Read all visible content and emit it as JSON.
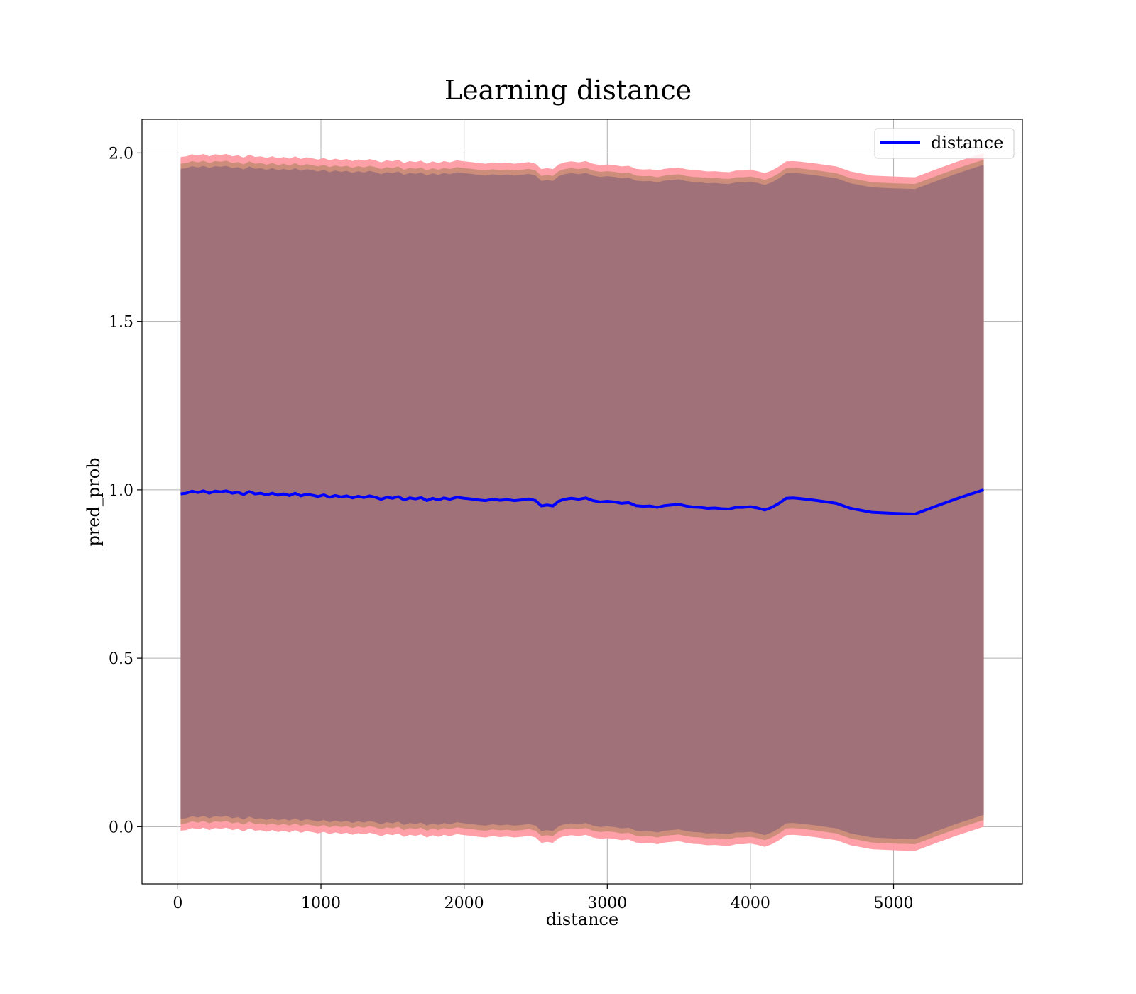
{
  "chart_data": {
    "type": "line",
    "title": "Learning distance",
    "xlabel": "distance",
    "ylabel": "pred_prob",
    "xlim": [
      -250,
      5900
    ],
    "ylim": [
      -0.17,
      2.1
    ],
    "xticks": [
      0,
      1000,
      2000,
      3000,
      4000,
      5000
    ],
    "xtick_labels": [
      "0",
      "1000",
      "2000",
      "3000",
      "4000",
      "5000"
    ],
    "yticks": [
      0.0,
      0.5,
      1.0,
      1.5,
      2.0
    ],
    "ytick_labels": [
      "0.0",
      "0.5",
      "1.0",
      "1.5",
      "2.0"
    ],
    "grid": true,
    "legend_position": "top-right",
    "colors": {
      "line": "#0000ff",
      "band_outer": "#ff9aa2",
      "band_mid": "#c98d78",
      "band_inner": "#a1717a",
      "grid": "#b0b0b0"
    },
    "series": [
      {
        "name": "distance",
        "x": [
          20,
          60,
          100,
          140,
          180,
          220,
          260,
          300,
          340,
          380,
          420,
          460,
          500,
          540,
          580,
          620,
          660,
          700,
          740,
          780,
          820,
          860,
          900,
          940,
          980,
          1020,
          1060,
          1100,
          1140,
          1180,
          1220,
          1260,
          1300,
          1340,
          1380,
          1420,
          1460,
          1500,
          1540,
          1580,
          1620,
          1660,
          1700,
          1740,
          1780,
          1820,
          1860,
          1900,
          1950,
          2000,
          2050,
          2100,
          2150,
          2200,
          2250,
          2300,
          2350,
          2400,
          2450,
          2500,
          2540,
          2580,
          2620,
          2660,
          2700,
          2750,
          2800,
          2850,
          2900,
          2950,
          3000,
          3050,
          3100,
          3150,
          3200,
          3250,
          3300,
          3350,
          3400,
          3450,
          3500,
          3550,
          3600,
          3650,
          3700,
          3750,
          3800,
          3850,
          3900,
          3950,
          4000,
          4050,
          4100,
          4150,
          4200,
          4250,
          4300,
          4350,
          4450,
          4600,
          4700,
          4850,
          5000,
          5150,
          5300,
          5450,
          5630
        ],
        "values": [
          0.988,
          0.99,
          0.996,
          0.992,
          0.997,
          0.99,
          0.996,
          0.994,
          0.997,
          0.99,
          0.993,
          0.986,
          0.995,
          0.988,
          0.99,
          0.985,
          0.99,
          0.984,
          0.988,
          0.983,
          0.99,
          0.982,
          0.987,
          0.984,
          0.98,
          0.985,
          0.978,
          0.983,
          0.979,
          0.982,
          0.976,
          0.981,
          0.977,
          0.982,
          0.978,
          0.972,
          0.978,
          0.975,
          0.98,
          0.97,
          0.976,
          0.973,
          0.977,
          0.968,
          0.975,
          0.97,
          0.976,
          0.972,
          0.978,
          0.975,
          0.973,
          0.97,
          0.968,
          0.972,
          0.969,
          0.971,
          0.968,
          0.97,
          0.973,
          0.968,
          0.952,
          0.955,
          0.952,
          0.966,
          0.972,
          0.975,
          0.972,
          0.976,
          0.968,
          0.964,
          0.966,
          0.964,
          0.96,
          0.962,
          0.953,
          0.951,
          0.952,
          0.948,
          0.953,
          0.955,
          0.957,
          0.952,
          0.949,
          0.948,
          0.945,
          0.946,
          0.944,
          0.943,
          0.948,
          0.948,
          0.95,
          0.946,
          0.94,
          0.948,
          0.96,
          0.975,
          0.976,
          0.974,
          0.969,
          0.96,
          0.945,
          0.933,
          0.93,
          0.928,
          0.952,
          0.975,
          1.0
        ]
      }
    ]
  }
}
